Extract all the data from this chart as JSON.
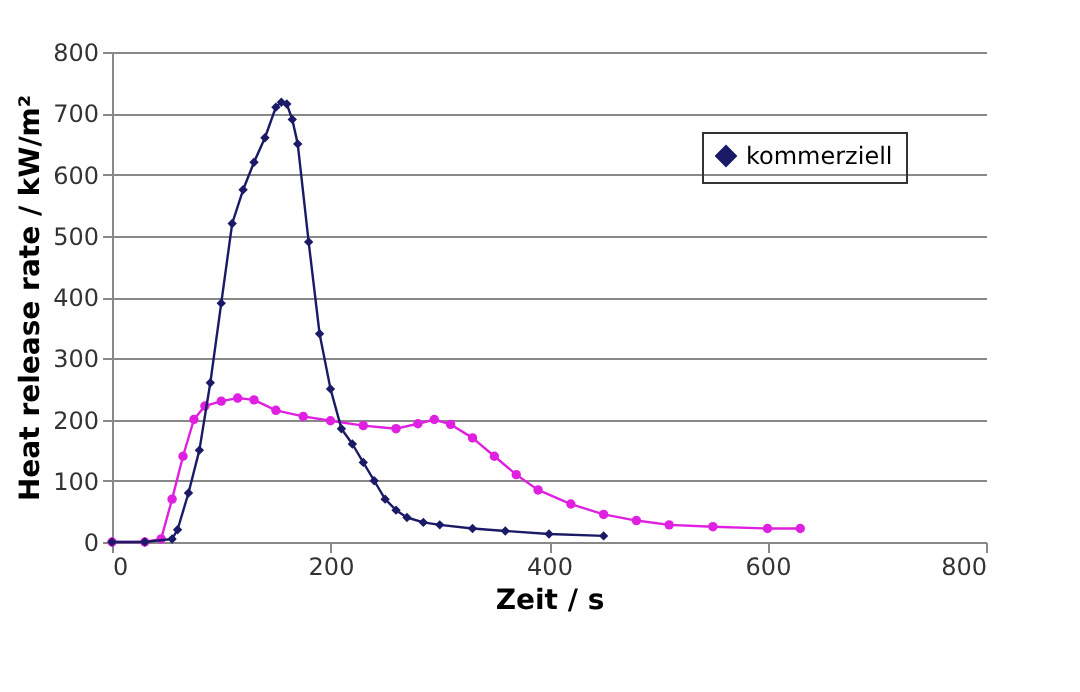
{
  "chart_data": {
    "type": "line",
    "xlabel": "Zeit / s",
    "ylabel": "Heat release rate / kW/m²",
    "xlim": [
      0,
      800
    ],
    "xticks": [
      0,
      200,
      400,
      600,
      800
    ],
    "ylim": [
      0,
      800
    ],
    "yticks": [
      0,
      100,
      200,
      300,
      400,
      500,
      600,
      700,
      800
    ],
    "grid": "y",
    "legend": "top right",
    "series": [
      {
        "color": "#e020e0",
        "marker": "circle",
        "x": [
          0,
          30,
          45,
          55,
          65,
          75,
          85,
          100,
          115,
          130,
          150,
          175,
          200,
          230,
          260,
          280,
          295,
          310,
          330,
          350,
          370,
          390,
          420,
          450,
          480,
          510,
          550,
          600,
          630
        ],
        "values": [
          0,
          0,
          5,
          70,
          140,
          200,
          222,
          230,
          235,
          232,
          215,
          205,
          198,
          190,
          185,
          193,
          200,
          192,
          170,
          140,
          110,
          85,
          62,
          45,
          35,
          28,
          25,
          22,
          22
        ]
      },
      {
        "name": "kommerziell",
        "color": "#1a1a66",
        "marker": "diamond",
        "x": [
          0,
          30,
          55,
          60,
          70,
          80,
          90,
          100,
          110,
          120,
          130,
          140,
          150,
          155,
          160,
          165,
          170,
          180,
          190,
          200,
          210,
          220,
          230,
          240,
          250,
          260,
          270,
          285,
          300,
          330,
          360,
          400,
          450
        ],
        "values": [
          0,
          0,
          5,
          20,
          80,
          150,
          260,
          390,
          520,
          575,
          620,
          660,
          710,
          718,
          715,
          690,
          650,
          490,
          340,
          250,
          185,
          160,
          130,
          100,
          70,
          52,
          40,
          32,
          28,
          22,
          18,
          13,
          10
        ]
      }
    ]
  }
}
